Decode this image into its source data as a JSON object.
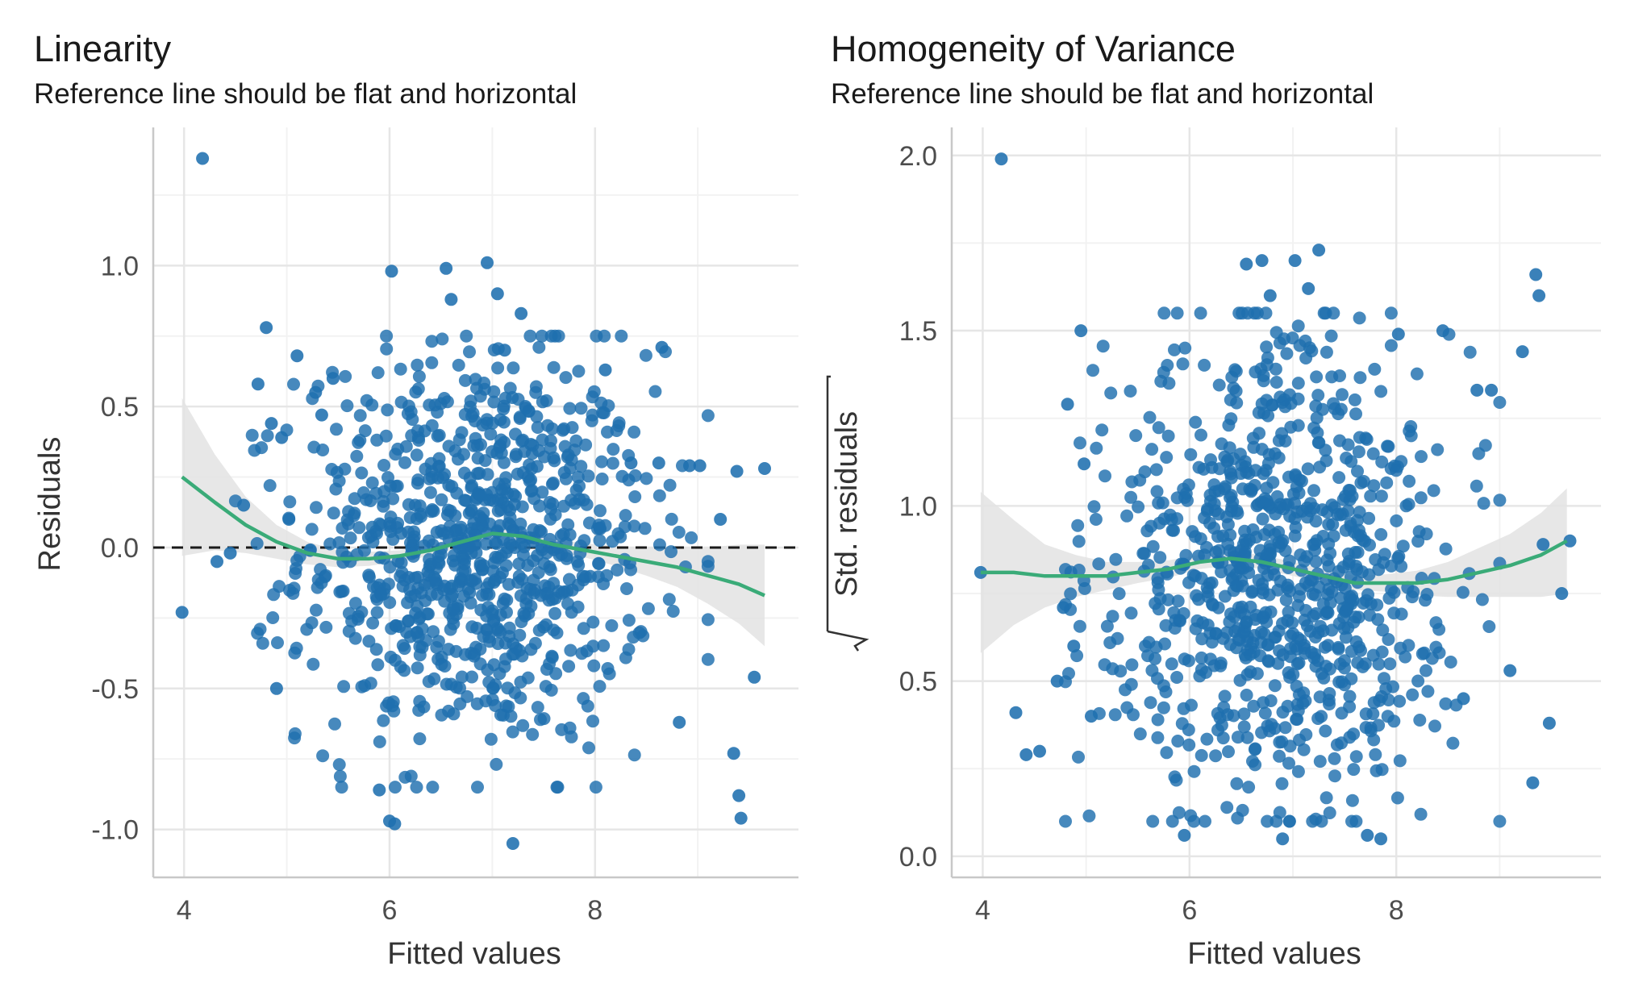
{
  "colors": {
    "points": "#1f6faf",
    "smooth": "#3aab78",
    "ribbon": "#e3e3e3",
    "grid_major": "#e6e6e6",
    "grid_minor": "#f2f2f2",
    "axis": "#c8c8c8",
    "reference": "#1a1a1a"
  },
  "chart_data": [
    {
      "type": "scatter",
      "title": "Linearity",
      "subtitle": "Reference line should be flat and horizontal",
      "xlabel": "Fitted values",
      "ylabel": "Residuals",
      "xlim": [
        3.7,
        9.98
      ],
      "ylim": [
        -1.17,
        1.49
      ],
      "xticks": [
        4,
        6,
        8
      ],
      "xtick_labels": [
        "4",
        "6",
        "8"
      ],
      "yticks": [
        -1.0,
        -0.5,
        0.0,
        0.5,
        1.0
      ],
      "ytick_labels": [
        "-1.0",
        "-0.5",
        "0.0",
        "0.5",
        "1.0"
      ],
      "grid": true,
      "reference_line": {
        "y": 0,
        "style": "dashed"
      },
      "smooth": {
        "x": [
          3.98,
          4.3,
          4.6,
          4.9,
          5.2,
          5.5,
          5.8,
          6.1,
          6.4,
          6.7,
          7.0,
          7.3,
          7.6,
          7.9,
          8.2,
          8.5,
          8.8,
          9.1,
          9.4,
          9.65
        ],
        "y": [
          0.25,
          0.16,
          0.08,
          0.02,
          -0.02,
          -0.04,
          -0.04,
          -0.03,
          -0.01,
          0.02,
          0.05,
          0.04,
          0.01,
          -0.01,
          -0.03,
          -0.05,
          -0.07,
          -0.1,
          -0.13,
          -0.17
        ],
        "ci_halfwidth": [
          0.28,
          0.17,
          0.1,
          0.06,
          0.04,
          0.03,
          0.025,
          0.02,
          0.02,
          0.02,
          0.02,
          0.02,
          0.02,
          0.025,
          0.035,
          0.05,
          0.07,
          0.1,
          0.14,
          0.18
        ]
      },
      "points": {
        "x": [
          3.98,
          4.18,
          4.32,
          4.45,
          4.58,
          4.72,
          4.8,
          4.85,
          4.9,
          4.95,
          5.02,
          5.1,
          5.28,
          5.34,
          5.45,
          6.02,
          6.55,
          6.6,
          6.95,
          7.05,
          7.12,
          7.28,
          8.65,
          8.92,
          9.02,
          9.22,
          9.38,
          9.4,
          9.42,
          9.65,
          7.2,
          6.0,
          5.9,
          6.05,
          8.1,
          8.35,
          8.62,
          8.82,
          9.35,
          9.55
        ],
        "y": [
          -0.23,
          1.38,
          -0.05,
          -0.02,
          0.15,
          0.58,
          0.78,
          0.44,
          -0.5,
          0.39,
          0.1,
          0.68,
          0.55,
          0.47,
          0.6,
          0.98,
          0.99,
          0.88,
          1.01,
          0.9,
          0.7,
          0.83,
          0.71,
          0.29,
          0.29,
          0.1,
          0.27,
          -0.88,
          -0.96,
          0.28,
          -1.05,
          -0.97,
          -0.86,
          -0.98,
          0.63,
          0.3,
          0.3,
          -0.62,
          -0.73,
          -0.46
        ]
      },
      "cloud": {
        "count": 900,
        "x_center": 6.85,
        "x_sd": 0.85,
        "x_range": [
          4.5,
          9.1
        ],
        "y_center": 0.0,
        "y_sd": 0.35,
        "y_range": [
          -0.85,
          0.75
        ]
      }
    },
    {
      "type": "scatter",
      "title": "Homogeneity of Variance",
      "subtitle": "Reference line should be flat and horizontal",
      "xlabel": "Fitted values",
      "ylabel": "Std. residuals",
      "ylabel_has_sqrt": true,
      "xlim": [
        3.7,
        9.98
      ],
      "ylim": [
        -0.06,
        2.08
      ],
      "xticks": [
        4,
        6,
        8
      ],
      "xtick_labels": [
        "4",
        "6",
        "8"
      ],
      "yticks": [
        0.0,
        0.5,
        1.0,
        1.5,
        2.0
      ],
      "ytick_labels": [
        "0.0",
        "0.5",
        "1.0",
        "1.5",
        "2.0"
      ],
      "grid": true,
      "smooth": {
        "x": [
          3.98,
          4.3,
          4.6,
          4.9,
          5.2,
          5.5,
          5.8,
          6.1,
          6.4,
          6.7,
          7.0,
          7.3,
          7.6,
          7.9,
          8.2,
          8.5,
          8.8,
          9.1,
          9.4,
          9.65
        ],
        "y": [
          0.81,
          0.81,
          0.8,
          0.8,
          0.8,
          0.81,
          0.82,
          0.84,
          0.85,
          0.84,
          0.82,
          0.8,
          0.78,
          0.78,
          0.78,
          0.79,
          0.81,
          0.83,
          0.86,
          0.9
        ],
        "ci_halfwidth": [
          0.23,
          0.15,
          0.09,
          0.06,
          0.04,
          0.03,
          0.025,
          0.02,
          0.02,
          0.02,
          0.02,
          0.02,
          0.02,
          0.025,
          0.035,
          0.05,
          0.07,
          0.09,
          0.12,
          0.15
        ]
      },
      "points": {
        "x": [
          3.98,
          4.18,
          4.32,
          4.42,
          4.55,
          4.72,
          4.78,
          4.82,
          4.88,
          4.95,
          4.98,
          5.05,
          6.55,
          6.7,
          6.78,
          7.02,
          7.15,
          7.25,
          8.02,
          8.45,
          8.65,
          8.78,
          8.92,
          9.22,
          9.35,
          9.38,
          9.42,
          9.6,
          9.68,
          5.95,
          6.9,
          7.85,
          7.72,
          9.1,
          9.32,
          9.48
        ],
        "y": [
          0.81,
          1.99,
          0.41,
          0.29,
          0.3,
          0.5,
          0.71,
          1.29,
          0.6,
          1.5,
          1.12,
          0.4,
          1.69,
          1.7,
          1.6,
          1.7,
          1.62,
          1.73,
          1.49,
          1.5,
          0.45,
          1.33,
          1.33,
          1.44,
          1.66,
          1.6,
          0.89,
          0.75,
          0.9,
          0.06,
          0.05,
          0.05,
          0.06,
          0.53,
          0.21,
          0.38
        ]
      },
      "cloud": {
        "count": 900,
        "x_center": 6.85,
        "x_sd": 0.85,
        "x_range": [
          4.8,
          9.0
        ],
        "y_center": 0.8,
        "y_sd": 0.33,
        "y_range": [
          0.1,
          1.55
        ]
      }
    }
  ]
}
